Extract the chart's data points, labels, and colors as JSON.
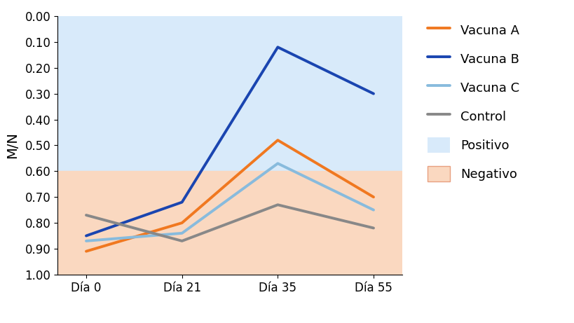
{
  "x_labels": [
    "Día 0",
    "Día 21",
    "Día 35",
    "Día 55"
  ],
  "x_values": [
    0,
    1,
    2,
    3
  ],
  "vacuna_a": [
    0.91,
    0.8,
    0.48,
    0.7
  ],
  "vacuna_b": [
    0.85,
    0.72,
    0.12,
    0.3
  ],
  "vacuna_c": [
    0.87,
    0.84,
    0.57,
    0.75
  ],
  "control": [
    0.77,
    0.87,
    0.73,
    0.82
  ],
  "color_a": "#F07820",
  "color_b": "#1A45B0",
  "color_c": "#88BBDD",
  "color_ctrl": "#888888",
  "color_positivo": "#D8EAFA",
  "color_negativo": "#FAD8C0",
  "cutoff": 0.6,
  "ylim_min": 1.0,
  "ylim_max": 0.0,
  "ylabel": "M/N",
  "linewidth": 2.8,
  "legend_fontsize": 13,
  "axis_fontsize": 12,
  "y_ticks": [
    0.0,
    0.1,
    0.2,
    0.3,
    0.4,
    0.5,
    0.6,
    0.7,
    0.8,
    0.9,
    1.0
  ]
}
